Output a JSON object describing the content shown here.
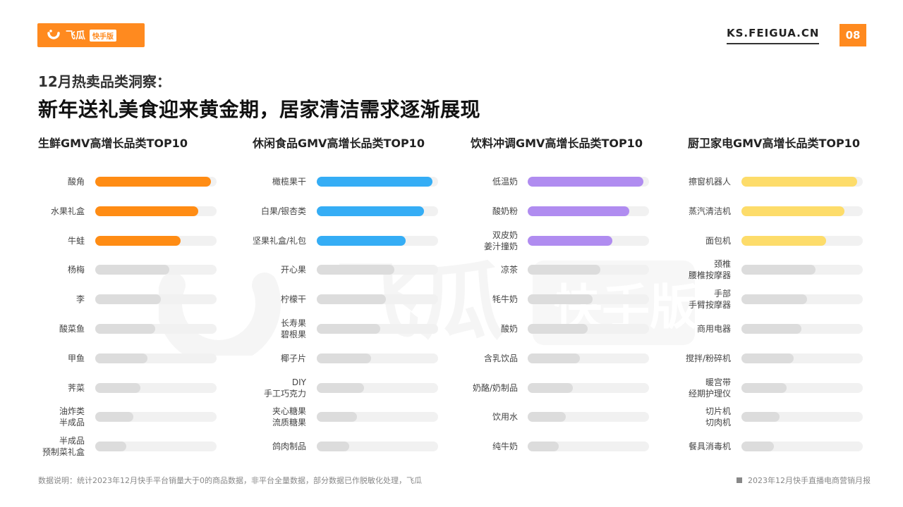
{
  "header": {
    "logo_text": "飞瓜",
    "logo_badge": "快手版",
    "site": "KS.FEIGUA.CN",
    "page_number": "08"
  },
  "headline": {
    "subtitle": "12月热卖品类洞察：",
    "title": "新年送礼美食迎来黄金期，居家清洁需求逐渐展现"
  },
  "watermark": {
    "text": "飞瓜",
    "badge": "快手版"
  },
  "chart_data": [
    {
      "type": "bar",
      "orientation": "horizontal",
      "title": "生鲜GMV高增长品类TOP10",
      "color": "#ff8c14",
      "categories": [
        "酸角",
        "水果礼盒",
        "牛蛙",
        "杨梅",
        "李",
        "酸菜鱼",
        "甲鱼",
        "荠菜",
        "油炸类\n半成品",
        "半成品\n预制菜礼盒"
      ],
      "values": [
        100,
        89,
        74,
        64,
        57,
        52,
        45,
        39,
        33,
        27
      ],
      "highlight_count": 3,
      "xlim": [
        0,
        105
      ]
    },
    {
      "type": "bar",
      "orientation": "horizontal",
      "title": "休闲食品GMV高增长品类TOP10",
      "color": "#35adf5",
      "categories": [
        "橄榄果干",
        "白果/银杏类",
        "坚果礼盒/礼包",
        "开心果",
        "柠檬干",
        "长寿果\n碧根果",
        "椰子片",
        "DIY\n手工巧克力",
        "夹心糖果\n流质糖果",
        "鸽肉制品"
      ],
      "values": [
        100,
        93,
        77,
        67,
        60,
        55,
        47,
        41,
        35,
        28
      ],
      "highlight_count": 3,
      "xlim": [
        0,
        105
      ]
    },
    {
      "type": "bar",
      "orientation": "horizontal",
      "title": "饮料冲调GMV高增长品类TOP10",
      "color": "#b08cf0",
      "categories": [
        "低温奶",
        "酸奶粉",
        "双皮奶\n姜汁撞奶",
        "凉茶",
        "牦牛奶",
        "酸奶",
        "含乳饮品",
        "奶酪/奶制品",
        "饮用水",
        "纯牛奶"
      ],
      "values": [
        100,
        88,
        73,
        63,
        56,
        52,
        45,
        39,
        33,
        27
      ],
      "highlight_count": 3,
      "xlim": [
        0,
        105
      ]
    },
    {
      "type": "bar",
      "orientation": "horizontal",
      "title": "厨卫家电GMV高增长品类TOP10",
      "color": "#fddc6a",
      "categories": [
        "擦窗机器人",
        "蒸汽清洁机",
        "面包机",
        "颈椎\n腰椎按摩器",
        "手部\n手臂按摩器",
        "商用电器",
        "搅拌/粉碎机",
        "暖宫带\n经期护理仪",
        "切片机\n切肉机",
        "餐具消毒机"
      ],
      "values": [
        100,
        89,
        73,
        64,
        57,
        52,
        45,
        39,
        33,
        28
      ],
      "highlight_count": 3,
      "xlim": [
        0,
        105
      ]
    }
  ],
  "footer": {
    "note": "数据说明：统计2023年12月快手平台销量大于0的商品数据，非平台全量数据，部分数据已作脱敏化处理，飞瓜",
    "report": "2023年12月快手直播电商营销月报"
  },
  "colors": {
    "accent": "#ff8a1f",
    "track": "#f1f1f1",
    "gray_bar": "#dcdcdc"
  }
}
